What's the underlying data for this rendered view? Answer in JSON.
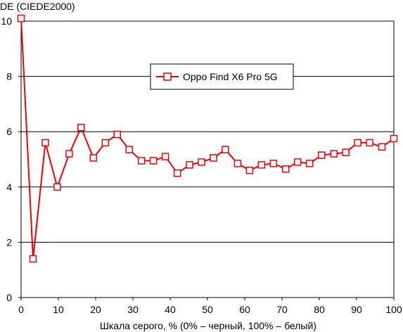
{
  "chart_data": {
    "type": "line",
    "title": "",
    "ylabel": "DE (CIEDE2000)",
    "xlabel": "Шкала серого, % (0% – черный, 100% – белый)",
    "xlim": [
      0,
      100
    ],
    "ylim": [
      0,
      10
    ],
    "x_ticks": [
      0,
      10,
      20,
      30,
      40,
      50,
      60,
      70,
      80,
      90,
      100
    ],
    "y_ticks": [
      0,
      2,
      4,
      6,
      8,
      10
    ],
    "grid": "horizontal",
    "legend_position": "top-center",
    "colors": {
      "series": "#e8000b",
      "marker_fill": "#ffffff",
      "grid": "#000000"
    },
    "series": [
      {
        "name": "Oppo Find X6 Pro 5G",
        "x": [
          0.0,
          3.2,
          6.5,
          9.7,
          12.9,
          16.1,
          19.4,
          22.6,
          25.8,
          29.0,
          32.3,
          35.5,
          38.7,
          41.9,
          45.2,
          48.4,
          51.6,
          54.8,
          58.1,
          61.3,
          64.5,
          67.7,
          71.0,
          74.2,
          77.4,
          80.6,
          83.9,
          87.1,
          90.3,
          93.5,
          96.8,
          100.0
        ],
        "y": [
          10.1,
          1.4,
          5.6,
          4.0,
          5.2,
          6.15,
          5.05,
          5.6,
          5.9,
          5.35,
          4.95,
          4.95,
          5.1,
          4.5,
          4.8,
          4.9,
          5.05,
          5.35,
          4.85,
          4.6,
          4.8,
          4.85,
          4.65,
          4.9,
          4.85,
          5.15,
          5.2,
          5.25,
          5.6,
          5.6,
          5.45,
          5.75
        ]
      }
    ]
  }
}
